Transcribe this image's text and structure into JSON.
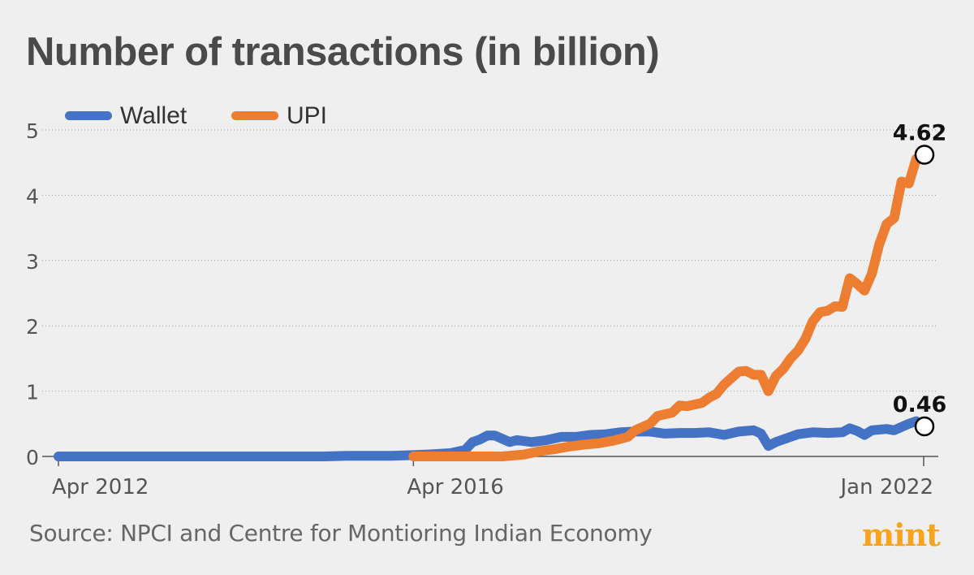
{
  "title": "Number of transactions (in billion)",
  "source": "Source: NPCI and Centre for Montioring Indian Economy",
  "logo": "mint",
  "colors": {
    "wallet": "#4472c4",
    "upi": "#ed7d31",
    "logo": "#f7a31c",
    "text": "#4a4a4a"
  },
  "chart_data": {
    "type": "line",
    "title": "Number of transactions (in billion)",
    "xlabel": "",
    "ylabel": "",
    "x_range": [
      "2012-04",
      "2022-01"
    ],
    "ylim": [
      0,
      5
    ],
    "yticks": [
      0,
      1,
      2,
      3,
      4,
      5
    ],
    "yticklabels": [
      "0",
      "1",
      "2",
      "3",
      "4",
      "5"
    ],
    "xticklabels": [
      "Apr 2012",
      "Apr 2016",
      "Jan 2022"
    ],
    "grid": true,
    "legend": "top-left",
    "series": [
      {
        "name": "Wallet",
        "color": "#4472c4",
        "points": [
          [
            "2012-04",
            0.0
          ],
          [
            "2013-04",
            0.0
          ],
          [
            "2014-04",
            0.0
          ],
          [
            "2015-04",
            0.0
          ],
          [
            "2015-07",
            0.01
          ],
          [
            "2016-01",
            0.01
          ],
          [
            "2016-04",
            0.02
          ],
          [
            "2016-06",
            0.03
          ],
          [
            "2016-09",
            0.05
          ],
          [
            "2016-11",
            0.1
          ],
          [
            "2016-12",
            0.22
          ],
          [
            "2017-01",
            0.26
          ],
          [
            "2017-02",
            0.32
          ],
          [
            "2017-03",
            0.32
          ],
          [
            "2017-04",
            0.27
          ],
          [
            "2017-05",
            0.22
          ],
          [
            "2017-06",
            0.25
          ],
          [
            "2017-08",
            0.22
          ],
          [
            "2017-10",
            0.25
          ],
          [
            "2017-12",
            0.3
          ],
          [
            "2018-02",
            0.3
          ],
          [
            "2018-04",
            0.33
          ],
          [
            "2018-06",
            0.34
          ],
          [
            "2018-08",
            0.37
          ],
          [
            "2018-10",
            0.38
          ],
          [
            "2018-12",
            0.38
          ],
          [
            "2019-02",
            0.35
          ],
          [
            "2019-04",
            0.36
          ],
          [
            "2019-06",
            0.36
          ],
          [
            "2019-08",
            0.37
          ],
          [
            "2019-10",
            0.33
          ],
          [
            "2019-12",
            0.38
          ],
          [
            "2020-02",
            0.4
          ],
          [
            "2020-03",
            0.35
          ],
          [
            "2020-04",
            0.16
          ],
          [
            "2020-05",
            0.22
          ],
          [
            "2020-06",
            0.26
          ],
          [
            "2020-08",
            0.34
          ],
          [
            "2020-10",
            0.37
          ],
          [
            "2020-12",
            0.36
          ],
          [
            "2021-02",
            0.37
          ],
          [
            "2021-03",
            0.43
          ],
          [
            "2021-04",
            0.39
          ],
          [
            "2021-05",
            0.33
          ],
          [
            "2021-06",
            0.4
          ],
          [
            "2021-08",
            0.42
          ],
          [
            "2021-09",
            0.4
          ],
          [
            "2021-10",
            0.45
          ],
          [
            "2021-11",
            0.5
          ],
          [
            "2021-12",
            0.54
          ],
          [
            "2022-01",
            0.46
          ]
        ]
      },
      {
        "name": "UPI",
        "color": "#ed7d31",
        "points": [
          [
            "2016-04",
            0.0
          ],
          [
            "2016-07",
            0.0
          ],
          [
            "2016-10",
            0.0
          ],
          [
            "2017-01",
            0.0
          ],
          [
            "2017-04",
            0.0
          ],
          [
            "2017-07",
            0.03
          ],
          [
            "2017-09",
            0.08
          ],
          [
            "2017-11",
            0.11
          ],
          [
            "2018-01",
            0.15
          ],
          [
            "2018-03",
            0.18
          ],
          [
            "2018-05",
            0.2
          ],
          [
            "2018-07",
            0.24
          ],
          [
            "2018-09",
            0.3
          ],
          [
            "2018-10",
            0.4
          ],
          [
            "2018-12",
            0.5
          ],
          [
            "2019-01",
            0.62
          ],
          [
            "2019-03",
            0.67
          ],
          [
            "2019-04",
            0.78
          ],
          [
            "2019-05",
            0.77
          ],
          [
            "2019-07",
            0.82
          ],
          [
            "2019-08",
            0.9
          ],
          [
            "2019-09",
            0.96
          ],
          [
            "2019-10",
            1.1
          ],
          [
            "2019-11",
            1.2
          ],
          [
            "2019-12",
            1.3
          ],
          [
            "2020-01",
            1.31
          ],
          [
            "2020-02",
            1.25
          ],
          [
            "2020-03",
            1.25
          ],
          [
            "2020-04",
            1.0
          ],
          [
            "2020-05",
            1.23
          ],
          [
            "2020-06",
            1.34
          ],
          [
            "2020-07",
            1.5
          ],
          [
            "2020-08",
            1.62
          ],
          [
            "2020-09",
            1.8
          ],
          [
            "2020-10",
            2.07
          ],
          [
            "2020-11",
            2.21
          ],
          [
            "2020-12",
            2.23
          ],
          [
            "2021-01",
            2.3
          ],
          [
            "2021-02",
            2.29
          ],
          [
            "2021-03",
            2.73
          ],
          [
            "2021-04",
            2.64
          ],
          [
            "2021-05",
            2.54
          ],
          [
            "2021-06",
            2.8
          ],
          [
            "2021-07",
            3.25
          ],
          [
            "2021-08",
            3.56
          ],
          [
            "2021-09",
            3.65
          ],
          [
            "2021-10",
            4.21
          ],
          [
            "2021-11",
            4.18
          ],
          [
            "2021-12",
            4.56
          ],
          [
            "2022-01",
            4.62
          ]
        ]
      }
    ],
    "annotations": [
      {
        "series": "UPI",
        "x": "2022-01",
        "y": 4.62,
        "text": "4.62"
      },
      {
        "series": "Wallet",
        "x": "2022-01",
        "y": 0.46,
        "text": "0.46"
      }
    ]
  }
}
